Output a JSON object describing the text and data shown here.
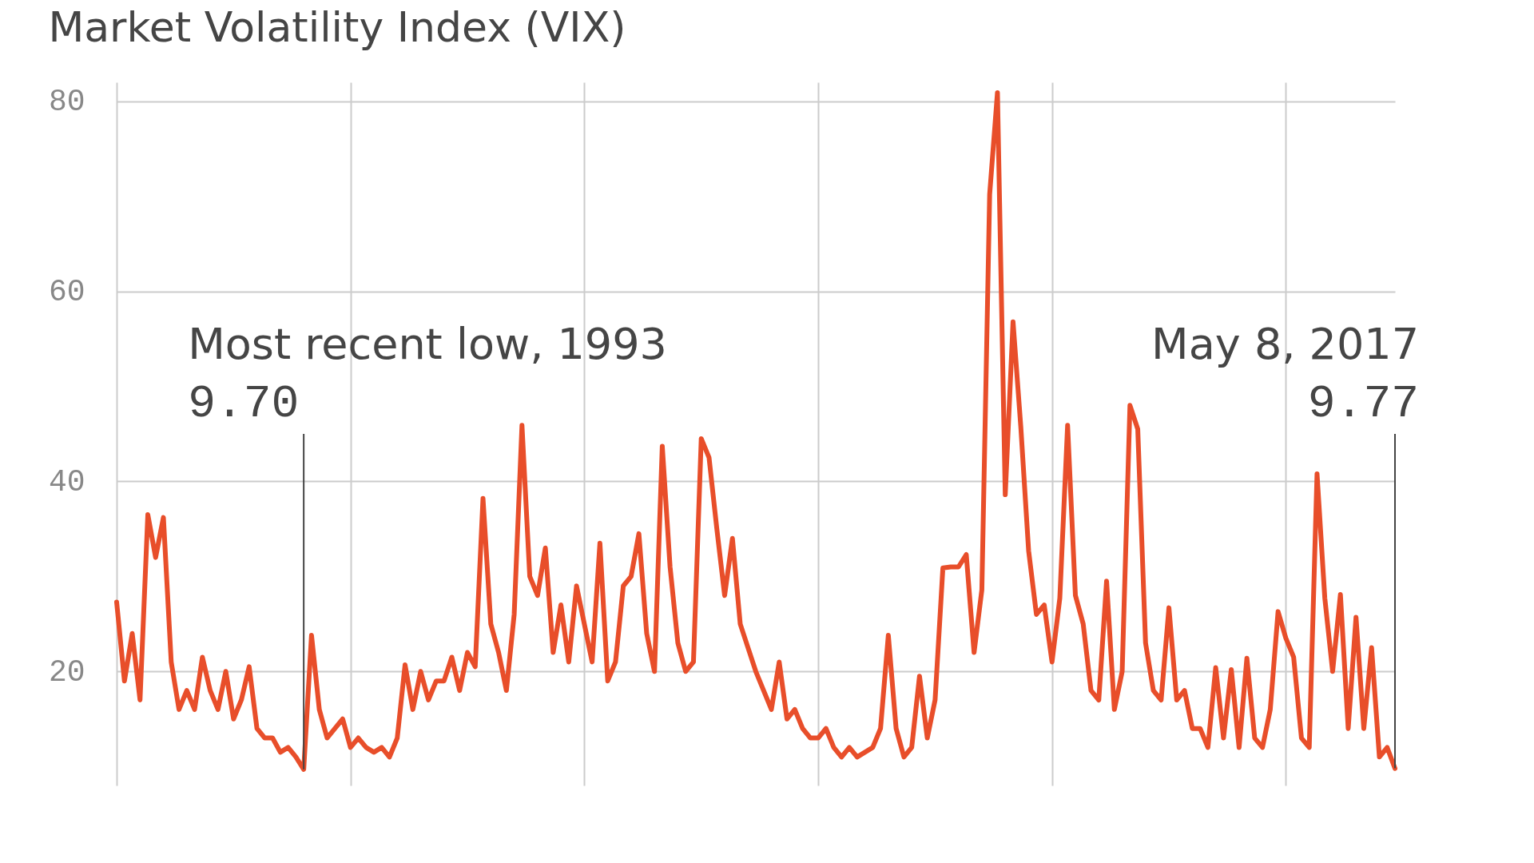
{
  "chart_data": {
    "type": "line",
    "title": "Market Volatility Index (VIX)",
    "categories": [
      null,
      null,
      null,
      null,
      null,
      null,
      null,
      null,
      null,
      null,
      null,
      null,
      null,
      null,
      null,
      null,
      null,
      null,
      null,
      null,
      null,
      null,
      null,
      null,
      null,
      null,
      null,
      null,
      null,
      null,
      null,
      null,
      null,
      null,
      null,
      null,
      null,
      null,
      null,
      null,
      null,
      null,
      null,
      null,
      null,
      null,
      null,
      null,
      null,
      null,
      null,
      null,
      null,
      null,
      null,
      null,
      null,
      null,
      null,
      null,
      null,
      null,
      null,
      null,
      null,
      null,
      null,
      null,
      null,
      null,
      null,
      null,
      null,
      null,
      null,
      null,
      null,
      null,
      null,
      null,
      null,
      null,
      null,
      null,
      null,
      null,
      null,
      null,
      null,
      null,
      null,
      null,
      null,
      null,
      null,
      null,
      null,
      null,
      null,
      null,
      null,
      null,
      null,
      null,
      null,
      null,
      null,
      null,
      null,
      null,
      null,
      null,
      null,
      null,
      null,
      null,
      null,
      null,
      null,
      null,
      null,
      null,
      null,
      null,
      null,
      null,
      null,
      null,
      null,
      null,
      null,
      null,
      null,
      null,
      null,
      null,
      null,
      null,
      null,
      null,
      null,
      null,
      null,
      null,
      null,
      null,
      null,
      null,
      null,
      null,
      null,
      null,
      null,
      null,
      null,
      null,
      null,
      null,
      null,
      null,
      null,
      null,
      null,
      null,
      null
    ],
    "ylim": [
      8,
      82
    ],
    "yticks": [
      20,
      40,
      60,
      80
    ],
    "grid": true,
    "series": [
      {
        "color": "#e84e2a",
        "values": [
          27.3,
          19,
          24,
          17,
          36.5,
          32,
          36.2,
          21,
          16,
          18,
          16,
          21.5,
          18,
          16,
          20,
          15,
          17,
          20.5,
          14,
          13,
          13,
          11.5,
          12,
          11,
          9.7,
          23.8,
          16,
          13,
          14,
          15,
          12,
          13,
          12,
          11.5,
          12,
          11,
          13,
          20.7,
          16,
          20,
          17,
          19,
          19,
          21.5,
          18,
          22,
          20.5,
          38.2,
          25,
          22,
          18,
          26,
          45.9,
          30,
          28,
          33,
          22,
          27,
          21,
          29,
          25,
          21,
          33.5,
          19,
          21,
          29,
          30,
          34.5,
          24,
          20,
          43.7,
          31,
          23,
          20,
          21,
          44.5,
          42.5,
          35,
          28,
          34,
          25,
          22.5,
          20,
          18,
          16,
          21,
          15,
          16,
          14,
          13,
          13,
          14,
          12,
          11,
          12,
          11,
          11.5,
          12,
          14,
          23.8,
          14,
          11,
          12,
          19.5,
          13,
          17,
          30.9,
          31,
          31,
          32.3,
          22,
          28.6,
          70.2,
          80.9,
          38.6,
          56.8,
          45.7,
          32.7,
          26,
          27,
          21,
          27.7,
          45.9,
          28,
          25,
          18,
          17,
          29.5,
          16,
          20,
          48,
          45.5,
          23,
          18,
          17,
          26.7,
          17,
          18,
          14,
          14,
          12,
          20.4,
          13,
          20.2,
          12,
          21.4,
          13,
          12,
          16,
          26.3,
          23.5,
          21.5,
          13,
          12,
          40.8,
          27.7,
          20,
          28.1,
          14,
          25.7,
          14,
          22.5,
          11,
          12,
          9.8
        ]
      }
    ],
    "annotations": [
      "Most recent low, 1993",
      "9.70",
      "May 8, 2017",
      "9.77"
    ]
  }
}
